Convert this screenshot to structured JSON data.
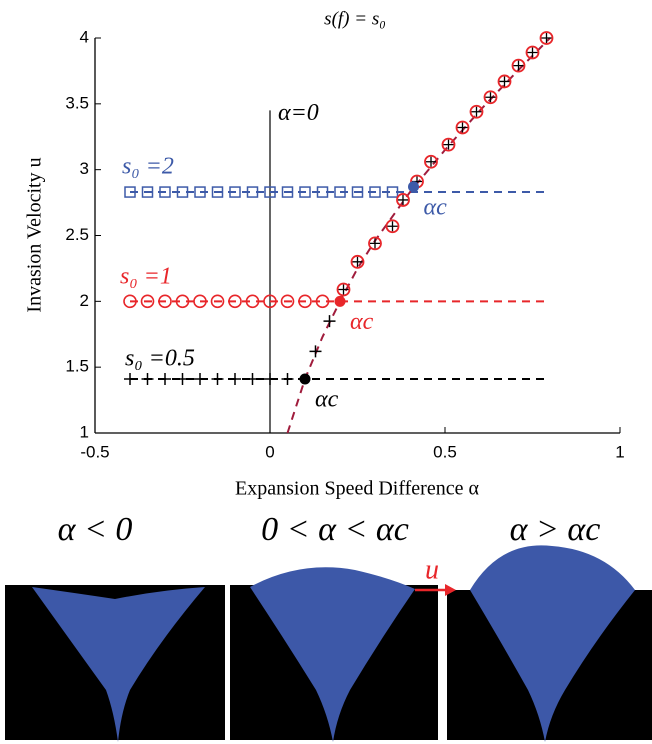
{
  "chart_data": {
    "type": "scatter",
    "title": "s(f) = s₀",
    "x_label": "Expansion Speed Difference α",
    "y_label": "Invasion Velocity u",
    "xlim": [
      -0.5,
      1
    ],
    "ylim": [
      1,
      4
    ],
    "xticks": [
      -0.5,
      0,
      0.5,
      1
    ],
    "yticks": [
      1,
      1.5,
      2,
      2.5,
      3,
      3.5,
      4
    ],
    "reference_line": {
      "x": 0,
      "ymax": 3.45,
      "label": "α=0"
    },
    "series": [
      {
        "style": "dashed",
        "color": "#3d5aa8",
        "x": [
          -0.4,
          0.8
        ],
        "values": [
          2.83,
          2.83
        ]
      },
      {
        "style": "dashed",
        "color": "#e8262a",
        "x": [
          -0.4,
          0.8
        ],
        "values": [
          2.0,
          2.0
        ]
      },
      {
        "style": "dashed",
        "color": "#000000",
        "x": [
          -0.4,
          0.8
        ],
        "values": [
          1.41,
          1.41
        ]
      },
      {
        "style": "dashed",
        "color": "#a01c3c",
        "x": [
          0.05,
          0.1,
          0.15,
          0.2,
          0.25,
          0.3,
          0.4,
          0.5,
          0.6,
          0.7,
          0.8
        ],
        "values": [
          1.0,
          1.41,
          1.73,
          2.0,
          2.25,
          2.46,
          2.83,
          3.15,
          3.45,
          3.73,
          4.0
        ]
      },
      {
        "name": "s₀ =2",
        "style": "square",
        "color": "#3d5aa8",
        "x": [
          -0.4,
          -0.35,
          -0.3,
          -0.25,
          -0.2,
          -0.15,
          -0.1,
          -0.05,
          0,
          0.05,
          0.1,
          0.15,
          0.2,
          0.25,
          0.3,
          0.35
        ],
        "values": [
          2.83,
          2.83,
          2.83,
          2.83,
          2.83,
          2.83,
          2.83,
          2.83,
          2.83,
          2.83,
          2.83,
          2.83,
          2.83,
          2.83,
          2.83,
          2.83
        ]
      },
      {
        "name": "s₀ =1",
        "style": "circle",
        "color": "#e8262a",
        "x": [
          -0.4,
          -0.35,
          -0.3,
          -0.25,
          -0.2,
          -0.15,
          -0.1,
          -0.05,
          0,
          0.05,
          0.1,
          0.15
        ],
        "values": [
          2.0,
          2.0,
          2.0,
          2.0,
          2.0,
          2.0,
          2.0,
          2.0,
          2.0,
          2.0,
          2.0,
          2.0
        ]
      },
      {
        "name": "s₀ =0.5",
        "style": "plus",
        "color": "#000000",
        "x": [
          -0.4,
          -0.35,
          -0.3,
          -0.25,
          -0.2,
          -0.15,
          -0.1,
          -0.05,
          0,
          0.05
        ],
        "values": [
          1.41,
          1.41,
          1.41,
          1.41,
          1.41,
          1.41,
          1.41,
          1.41,
          1.41,
          1.41
        ]
      },
      {
        "style": "plus",
        "color": "#000000",
        "x": [
          0.13,
          0.17
        ],
        "values": [
          1.62,
          1.85
        ]
      },
      {
        "style": "circle-plus",
        "color": "#e8262a",
        "x": [
          0.21,
          0.25,
          0.3,
          0.35,
          0.38,
          0.42,
          0.46,
          0.51,
          0.55,
          0.59,
          0.63,
          0.67,
          0.71,
          0.75,
          0.79
        ],
        "values": [
          2.09,
          2.3,
          2.44,
          2.57,
          2.77,
          2.91,
          3.06,
          3.19,
          3.32,
          3.44,
          3.55,
          3.67,
          3.79,
          3.89,
          4.0
        ]
      },
      {
        "name": "αc",
        "style": "dot",
        "color": "#3d5aa8",
        "x": [
          0.41
        ],
        "values": [
          2.87
        ]
      },
      {
        "name": "αc",
        "style": "dot",
        "color": "#e8262a",
        "x": [
          0.2
        ],
        "values": [
          2.0
        ]
      },
      {
        "name": "αc",
        "style": "dot",
        "color": "#000000",
        "x": [
          0.1
        ],
        "values": [
          1.41
        ]
      }
    ]
  },
  "panels": [
    {
      "caption": "α < 0"
    },
    {
      "caption": "0 < α < αc"
    },
    {
      "caption": "α > αc"
    }
  ],
  "arrow_label": "u"
}
